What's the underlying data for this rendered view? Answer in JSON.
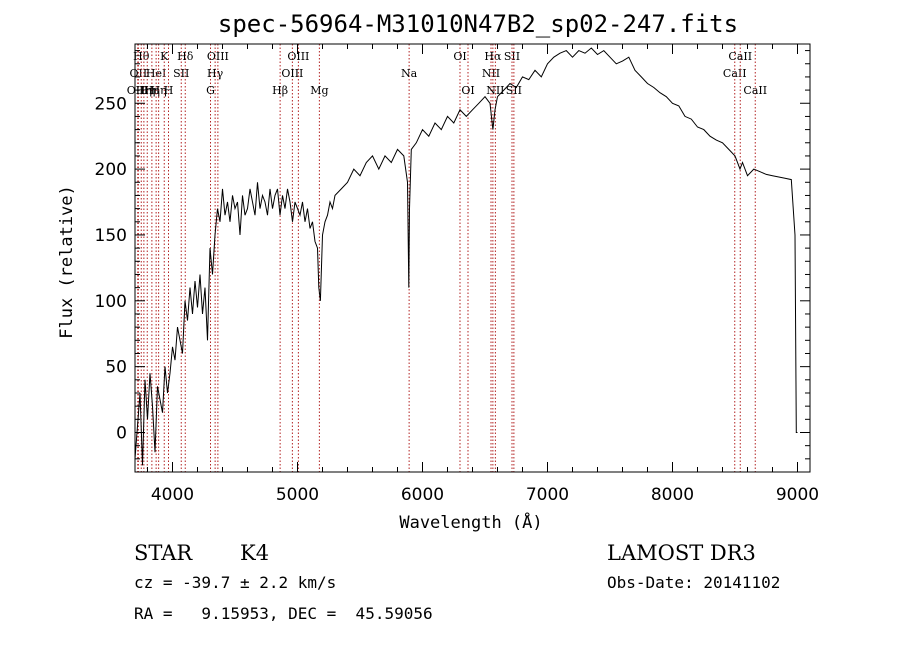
{
  "chart_data": {
    "type": "line",
    "title": "spec-56964-M31010N47B2_sp02-247.fits",
    "xlabel": "Wavelength (Å)",
    "ylabel": "Flux (relative)",
    "xlim": [
      3700,
      9100
    ],
    "ylim": [
      -30,
      295
    ],
    "xticks": [
      4000,
      5000,
      6000,
      7000,
      8000,
      9000
    ],
    "yticks": [
      0,
      50,
      100,
      150,
      200,
      250
    ],
    "series": [
      {
        "x": [
          3700,
          3720,
          3740,
          3760,
          3780,
          3800,
          3820,
          3840,
          3860,
          3880,
          3900,
          3920,
          3940,
          3960,
          3980,
          4000,
          4020,
          4040,
          4060,
          4080,
          4100,
          4120,
          4140,
          4160,
          4180,
          4200,
          4220,
          4240,
          4260,
          4280,
          4300,
          4320,
          4340,
          4360,
          4380,
          4400,
          4420,
          4440,
          4460,
          4480,
          4500,
          4520,
          4540,
          4560,
          4580,
          4600,
          4620,
          4640,
          4660,
          4680,
          4700,
          4720,
          4740,
          4760,
          4780,
          4800,
          4820,
          4840,
          4860,
          4880,
          4900,
          4920,
          4940,
          4960,
          4980,
          5000,
          5020,
          5040,
          5060,
          5080,
          5100,
          5120,
          5140,
          5160,
          5170,
          5183,
          5200,
          5220,
          5240,
          5260,
          5280,
          5300,
          5350,
          5400,
          5450,
          5500,
          5550,
          5600,
          5650,
          5700,
          5750,
          5800,
          5850,
          5880,
          5890,
          5896,
          5910,
          5950,
          6000,
          6050,
          6100,
          6150,
          6200,
          6250,
          6300,
          6350,
          6400,
          6450,
          6500,
          6540,
          6563,
          6580,
          6600,
          6650,
          6700,
          6750,
          6800,
          6850,
          6900,
          6950,
          7000,
          7050,
          7100,
          7150,
          7200,
          7250,
          7300,
          7350,
          7400,
          7450,
          7500,
          7550,
          7600,
          7650,
          7700,
          7750,
          7800,
          7850,
          7900,
          7950,
          8000,
          8050,
          8100,
          8150,
          8200,
          8250,
          8300,
          8350,
          8400,
          8450,
          8500,
          8540,
          8560,
          8600,
          8650,
          8700,
          8750,
          8800,
          8850,
          8900,
          8950,
          8980,
          8990,
          9000
        ],
        "y": [
          -20,
          5,
          30,
          -25,
          40,
          10,
          45,
          20,
          -15,
          35,
          25,
          15,
          50,
          30,
          45,
          65,
          55,
          80,
          70,
          60,
          100,
          85,
          110,
          90,
          115,
          95,
          120,
          90,
          110,
          70,
          140,
          120,
          150,
          170,
          160,
          185,
          165,
          175,
          160,
          180,
          170,
          175,
          150,
          180,
          165,
          170,
          185,
          175,
          165,
          190,
          170,
          180,
          175,
          165,
          185,
          170,
          180,
          185,
          165,
          180,
          170,
          185,
          175,
          160,
          175,
          170,
          165,
          175,
          160,
          170,
          155,
          160,
          145,
          140,
          110,
          100,
          150,
          160,
          165,
          175,
          170,
          180,
          185,
          190,
          200,
          195,
          205,
          210,
          200,
          210,
          205,
          215,
          210,
          190,
          110,
          170,
          215,
          220,
          230,
          225,
          235,
          230,
          240,
          235,
          245,
          240,
          245,
          250,
          255,
          250,
          230,
          245,
          255,
          260,
          265,
          262,
          270,
          268,
          275,
          270,
          280,
          285,
          288,
          290,
          285,
          290,
          288,
          292,
          287,
          290,
          285,
          280,
          282,
          285,
          275,
          270,
          265,
          262,
          258,
          255,
          250,
          248,
          240,
          238,
          232,
          230,
          225,
          222,
          220,
          215,
          210,
          200,
          205,
          195,
          200,
          198,
          196,
          195,
          194,
          193,
          192,
          150,
          0,
          0
        ]
      }
    ],
    "lines": [
      {
        "x": 3722,
        "label": "OIII",
        "row": 3
      },
      {
        "x": 3727,
        "label": "OII",
        "row": 2
      },
      {
        "x": 3750,
        "label": "Hθ",
        "row": 1
      },
      {
        "x": 3771,
        "label": "Hη",
        "row": 3
      },
      {
        "x": 3798,
        "label": "Hη",
        "row": 3
      },
      {
        "x": 3835,
        "label": "Hη",
        "row": 3
      },
      {
        "x": 3869,
        "label": "HeI",
        "row": 2
      },
      {
        "x": 3889,
        "label": "Hη",
        "row": 3
      },
      {
        "x": 3934,
        "label": "K",
        "row": 1
      },
      {
        "x": 3968,
        "label": "H",
        "row": 3
      },
      {
        "x": 4070,
        "label": "SII",
        "row": 2
      },
      {
        "x": 4102,
        "label": "Hδ",
        "row": 1
      },
      {
        "x": 4304,
        "label": "G",
        "row": 3
      },
      {
        "x": 4341,
        "label": "Hγ",
        "row": 2
      },
      {
        "x": 4363,
        "label": "OIII",
        "row": 1
      },
      {
        "x": 4861,
        "label": "Hβ",
        "row": 3
      },
      {
        "x": 4959,
        "label": "OIII",
        "row": 2
      },
      {
        "x": 5007,
        "label": "OIII",
        "row": 1
      },
      {
        "x": 5175,
        "label": "Mg",
        "row": 3
      },
      {
        "x": 5893,
        "label": "Na",
        "row": 2
      },
      {
        "x": 6300,
        "label": "OI",
        "row": 1
      },
      {
        "x": 6364,
        "label": "OI",
        "row": 3
      },
      {
        "x": 6548,
        "label": "NII",
        "row": 2
      },
      {
        "x": 6563,
        "label": "Hα",
        "row": 1
      },
      {
        "x": 6583,
        "label": "NII",
        "row": 3
      },
      {
        "x": 6716,
        "label": "SII",
        "row": 1
      },
      {
        "x": 6731,
        "label": "SII",
        "row": 3
      },
      {
        "x": 8498,
        "label": "CaII",
        "row": 2
      },
      {
        "x": 8542,
        "label": "CaII",
        "row": 1
      },
      {
        "x": 8662,
        "label": "CaII",
        "row": 3
      }
    ]
  },
  "info": {
    "object_type": "STAR",
    "subclass": "K4",
    "survey": "LAMOST DR3",
    "cz": "cz = -39.7 ± 2.2 km/s",
    "obs_date": "Obs-Date: 20141102",
    "coords": "RA =   9.15953, DEC =  45.59056"
  }
}
